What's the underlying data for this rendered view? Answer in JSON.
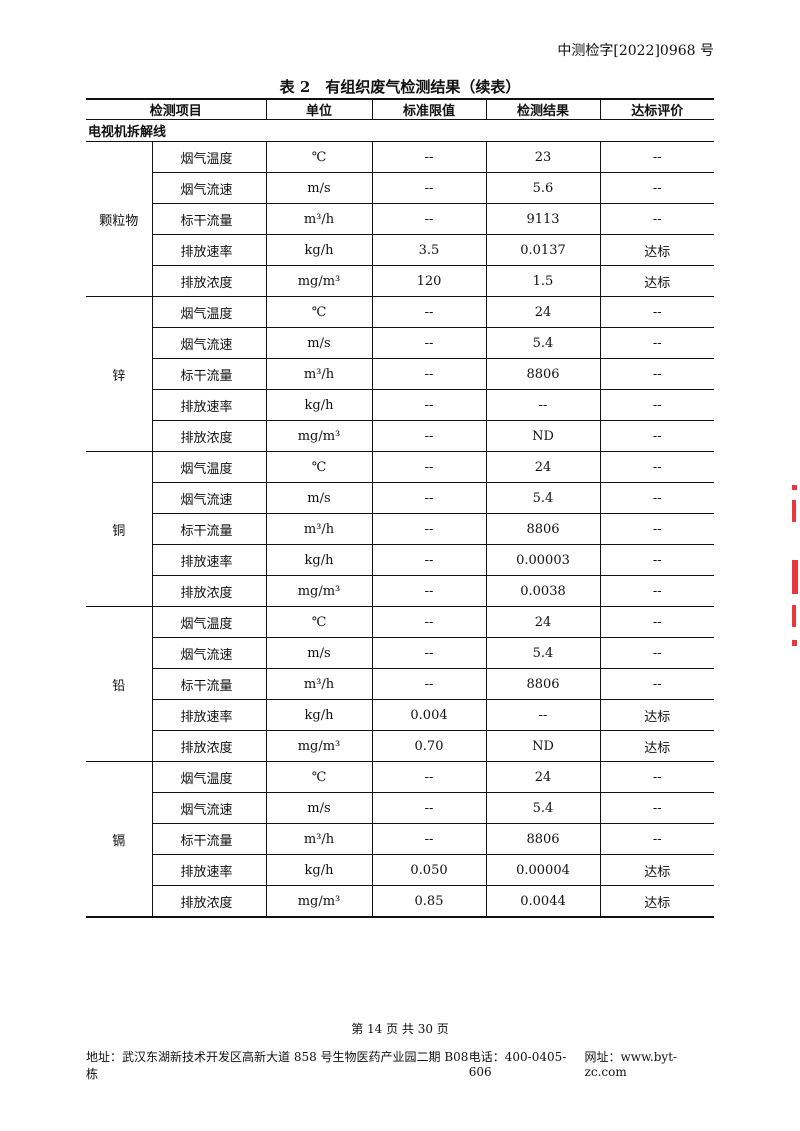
{
  "doc_number": "中测检字[2022]0968 号",
  "title": "表 2　有组织废气检测结果（续表）",
  "headers": [
    "检测项目",
    "单位",
    "标准限值",
    "检测结果",
    "达标评价"
  ],
  "section": "电视机拆解线",
  "groups": [
    {
      "name": "颗粒物",
      "rows": [
        [
          "烟气温度",
          "℃",
          "--",
          "23",
          "--"
        ],
        [
          "烟气流速",
          "m/s",
          "--",
          "5.6",
          "--"
        ],
        [
          "标干流量",
          "m³/h",
          "--",
          "9113",
          "--"
        ],
        [
          "排放速率",
          "kg/h",
          "3.5",
          "0.0137",
          "达标"
        ],
        [
          "排放浓度",
          "mg/m³",
          "120",
          "1.5",
          "达标"
        ]
      ]
    },
    {
      "name": "锌",
      "rows": [
        [
          "烟气温度",
          "℃",
          "--",
          "24",
          "--"
        ],
        [
          "烟气流速",
          "m/s",
          "--",
          "5.4",
          "--"
        ],
        [
          "标干流量",
          "m³/h",
          "--",
          "8806",
          "--"
        ],
        [
          "排放速率",
          "kg/h",
          "--",
          "--",
          "--"
        ],
        [
          "排放浓度",
          "mg/m³",
          "--",
          "ND",
          "--"
        ]
      ]
    },
    {
      "name": "铜",
      "rows": [
        [
          "烟气温度",
          "℃",
          "--",
          "24",
          "--"
        ],
        [
          "烟气流速",
          "m/s",
          "--",
          "5.4",
          "--"
        ],
        [
          "标干流量",
          "m³/h",
          "--",
          "8806",
          "--"
        ],
        [
          "排放速率",
          "kg/h",
          "--",
          "0.00003",
          "--"
        ],
        [
          "排放浓度",
          "mg/m³",
          "--",
          "0.0038",
          "--"
        ]
      ]
    },
    {
      "name": "铅",
      "rows": [
        [
          "烟气温度",
          "℃",
          "--",
          "24",
          "--"
        ],
        [
          "烟气流速",
          "m/s",
          "--",
          "5.4",
          "--"
        ],
        [
          "标干流量",
          "m³/h",
          "--",
          "8806",
          "--"
        ],
        [
          "排放速率",
          "kg/h",
          "0.004",
          "--",
          "达标"
        ],
        [
          "排放浓度",
          "mg/m³",
          "0.70",
          "ND",
          "达标"
        ]
      ]
    },
    {
      "name": "镉",
      "rows": [
        [
          "烟气温度",
          "℃",
          "--",
          "24",
          "--"
        ],
        [
          "烟气流速",
          "m/s",
          "--",
          "5.4",
          "--"
        ],
        [
          "标干流量",
          "m³/h",
          "--",
          "8806",
          "--"
        ],
        [
          "排放速率",
          "kg/h",
          "0.050",
          "0.00004",
          "达标"
        ],
        [
          "排放浓度",
          "mg/m³",
          "0.85",
          "0.0044",
          "达标"
        ]
      ]
    }
  ],
  "footer": {
    "page": "第 14 页 共 30 页",
    "address": "地址：武汉东湖新技术开发区高新大道 858 号生物医药产业园二期 B08 栋",
    "phone": "电话：400-0405-606",
    "website": "网址：www.byt-zc.com"
  },
  "stamp_color": "#e8383d"
}
